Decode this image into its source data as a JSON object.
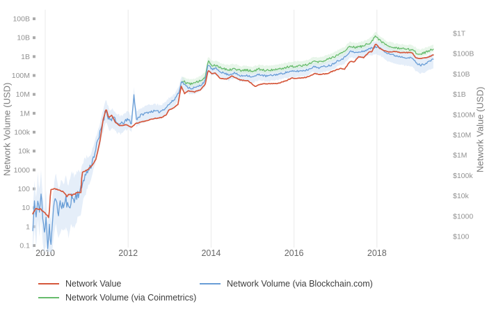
{
  "chart_data": {
    "type": "line",
    "title": "",
    "x_range": [
      2009.7,
      2019.5
    ],
    "grid": "vertical-only",
    "legend_position": "bottom",
    "x_ticks": [
      {
        "label": "2010",
        "year": 2010
      },
      {
        "label": "2012",
        "year": 2012
      },
      {
        "label": "2014",
        "year": 2014
      },
      {
        "label": "2016",
        "year": 2016
      },
      {
        "label": "2018",
        "year": 2018
      }
    ],
    "left_axis": {
      "label": "Network Volume (USD)",
      "scale": "log",
      "range": [
        0.1,
        100000000000
      ],
      "ticks": [
        {
          "label": "100B",
          "value": 100000000000.0
        },
        {
          "label": "10B",
          "value": 10000000000.0
        },
        {
          "label": "1B",
          "value": 1000000000.0
        },
        {
          "label": "100M",
          "value": 100000000.0
        },
        {
          "label": "10M",
          "value": 10000000.0
        },
        {
          "label": "1M",
          "value": 1000000.0
        },
        {
          "label": "100k",
          "value": 100000.0
        },
        {
          "label": "10k",
          "value": 10000.0
        },
        {
          "label": "1000",
          "value": 1000.0
        },
        {
          "label": "100",
          "value": 100.0
        },
        {
          "label": "10",
          "value": 10
        },
        {
          "label": "1",
          "value": 1
        },
        {
          "label": "0.1",
          "value": 0.1
        }
      ]
    },
    "right_axis": {
      "label": "Network Value (USD)",
      "scale": "log",
      "range": [
        100,
        1000000000000
      ],
      "ticks": [
        {
          "label": "$1T",
          "value": 1000000000000.0
        },
        {
          "label": "$100B",
          "value": 100000000000.0
        },
        {
          "label": "$10B",
          "value": 10000000000.0
        },
        {
          "label": "$1B",
          "value": 1000000000.0
        },
        {
          "label": "$100M",
          "value": 100000000.0
        },
        {
          "label": "$10M",
          "value": 10000000.0
        },
        {
          "label": "$1M",
          "value": 1000000.0
        },
        {
          "label": "$100k",
          "value": 100000.0
        },
        {
          "label": "$10k",
          "value": 10000.0
        },
        {
          "label": "$1000",
          "value": 1000.0
        },
        {
          "label": "$100",
          "value": 100.0
        }
      ]
    },
    "series": [
      {
        "name": "Network Value",
        "axis": "right",
        "color": "#d5573b",
        "points": [
          [
            2009.7,
            1300
          ],
          [
            2009.78,
            2400
          ],
          [
            2009.88,
            2200
          ],
          [
            2009.96,
            1700
          ],
          [
            2010.04,
            1100
          ],
          [
            2010.09,
            850
          ],
          [
            2010.13,
            20000
          ],
          [
            2010.22,
            23000
          ],
          [
            2010.35,
            20000
          ],
          [
            2010.45,
            15000
          ],
          [
            2010.52,
            9500
          ],
          [
            2010.58,
            12000
          ],
          [
            2010.65,
            10500
          ],
          [
            2010.75,
            14000
          ],
          [
            2010.86,
            15000
          ],
          [
            2010.89,
            150000
          ],
          [
            2010.97,
            170000
          ],
          [
            2011.03,
            200000
          ],
          [
            2011.12,
            300000
          ],
          [
            2011.22,
            600000
          ],
          [
            2011.32,
            5000000
          ],
          [
            2011.4,
            60000000
          ],
          [
            2011.47,
            190000000
          ],
          [
            2011.53,
            70000000
          ],
          [
            2011.6,
            95000000
          ],
          [
            2011.7,
            40000000
          ],
          [
            2011.8,
            28000000
          ],
          [
            2011.95,
            32000000
          ],
          [
            2012.08,
            24000000
          ],
          [
            2012.2,
            38000000
          ],
          [
            2012.4,
            48000000
          ],
          [
            2012.6,
            62000000
          ],
          [
            2012.8,
            72000000
          ],
          [
            2012.92,
            95000000
          ],
          [
            2012.97,
            160000000
          ],
          [
            2013.1,
            220000000
          ],
          [
            2013.2,
            320000000
          ],
          [
            2013.28,
            2500000000
          ],
          [
            2013.36,
            1100000000
          ],
          [
            2013.46,
            1500000000
          ],
          [
            2013.6,
            1300000000
          ],
          [
            2013.75,
            1700000000
          ],
          [
            2013.86,
            3200000000
          ],
          [
            2013.93,
            15500000000
          ],
          [
            2014.02,
            10000000000
          ],
          [
            2014.1,
            11000000000
          ],
          [
            2014.22,
            6200000000
          ],
          [
            2014.38,
            5600000000
          ],
          [
            2014.5,
            8000000000
          ],
          [
            2014.7,
            5100000000
          ],
          [
            2014.9,
            4600000000
          ],
          [
            2015.06,
            2400000000
          ],
          [
            2015.2,
            3200000000
          ],
          [
            2015.4,
            3300000000
          ],
          [
            2015.6,
            3400000000
          ],
          [
            2015.8,
            4600000000
          ],
          [
            2015.95,
            6300000000
          ],
          [
            2016.1,
            6200000000
          ],
          [
            2016.3,
            6900000000
          ],
          [
            2016.5,
            10500000000
          ],
          [
            2016.62,
            9300000000
          ],
          [
            2016.8,
            10500000000
          ],
          [
            2017.0,
            15500000000
          ],
          [
            2017.12,
            19000000000
          ],
          [
            2017.22,
            17500000000
          ],
          [
            2017.35,
            42000000000
          ],
          [
            2017.45,
            38000000000
          ],
          [
            2017.55,
            70000000000
          ],
          [
            2017.68,
            64000000000
          ],
          [
            2017.8,
            115000000000
          ],
          [
            2017.88,
            130000000000
          ],
          [
            2017.97,
            310000000000
          ],
          [
            2018.06,
            190000000000
          ],
          [
            2018.16,
            145000000000
          ],
          [
            2018.3,
            120000000000
          ],
          [
            2018.45,
            130000000000
          ],
          [
            2018.56,
            110000000000
          ],
          [
            2018.7,
            115000000000
          ],
          [
            2018.85,
            110000000000
          ],
          [
            2018.93,
            64000000000
          ],
          [
            2019.02,
            58000000000
          ],
          [
            2019.12,
            62000000000
          ],
          [
            2019.22,
            66000000000
          ],
          [
            2019.3,
            76000000000
          ],
          [
            2019.36,
            90000000000
          ]
        ]
      },
      {
        "name": "Network Volume (via Blockchain.com)",
        "axis": "left",
        "color": "#689dd6",
        "band_color": "#cfe0f4",
        "points": [
          [
            2009.7,
            0.6
          ],
          [
            2009.74,
            20
          ],
          [
            2009.78,
            2
          ],
          [
            2009.82,
            40
          ],
          [
            2009.86,
            5
          ],
          [
            2009.9,
            55
          ],
          [
            2009.94,
            3
          ],
          [
            2009.98,
            0.4
          ],
          [
            2010.02,
            5
          ],
          [
            2010.06,
            0.08
          ],
          [
            2010.1,
            1.2
          ],
          [
            2010.14,
            0.1
          ],
          [
            2010.18,
            2.5
          ],
          [
            2010.22,
            14
          ],
          [
            2010.26,
            32
          ],
          [
            2010.31,
            6
          ],
          [
            2010.38,
            16
          ],
          [
            2010.45,
            12
          ],
          [
            2010.5,
            26
          ],
          [
            2010.56,
            8
          ],
          [
            2010.63,
            36
          ],
          [
            2010.7,
            26
          ],
          [
            2010.78,
            60
          ],
          [
            2010.86,
            75
          ],
          [
            2010.92,
            320
          ],
          [
            2011.0,
            700
          ],
          [
            2011.1,
            1600
          ],
          [
            2011.2,
            9000
          ],
          [
            2011.3,
            55000
          ],
          [
            2011.38,
            320000
          ],
          [
            2011.47,
            1600000
          ],
          [
            2011.55,
            420000
          ],
          [
            2011.62,
            620000
          ],
          [
            2011.72,
            300000
          ],
          [
            2011.82,
            260000
          ],
          [
            2011.92,
            360000
          ],
          [
            2012.0,
            460000
          ],
          [
            2012.08,
            310000
          ],
          [
            2012.14,
            9000000
          ],
          [
            2012.2,
            520000
          ],
          [
            2012.32,
            820000
          ],
          [
            2012.46,
            1100000
          ],
          [
            2012.6,
            1300000
          ],
          [
            2012.76,
            1200000
          ],
          [
            2012.9,
            1900000
          ],
          [
            2013.0,
            3200000
          ],
          [
            2013.12,
            5500000
          ],
          [
            2013.22,
            13000000
          ],
          [
            2013.29,
            50000000
          ],
          [
            2013.4,
            26000000
          ],
          [
            2013.52,
            21000000
          ],
          [
            2013.64,
            23000000
          ],
          [
            2013.76,
            32000000
          ],
          [
            2013.86,
            55000000
          ],
          [
            2013.93,
            400000000
          ],
          [
            2014.02,
            210000000
          ],
          [
            2014.12,
            230000000
          ],
          [
            2014.26,
            145000000
          ],
          [
            2014.42,
            110000000
          ],
          [
            2014.56,
            135000000
          ],
          [
            2014.72,
            92000000
          ],
          [
            2014.86,
            105000000
          ],
          [
            2015.0,
            82000000
          ],
          [
            2015.16,
            115000000
          ],
          [
            2015.32,
            92000000
          ],
          [
            2015.5,
            105000000
          ],
          [
            2015.7,
            125000000
          ],
          [
            2015.86,
            155000000
          ],
          [
            2016.0,
            165000000
          ],
          [
            2016.16,
            175000000
          ],
          [
            2016.32,
            195000000
          ],
          [
            2016.46,
            290000000
          ],
          [
            2016.6,
            260000000
          ],
          [
            2016.76,
            310000000
          ],
          [
            2016.9,
            360000000
          ],
          [
            2017.06,
            620000000
          ],
          [
            2017.2,
            820000000
          ],
          [
            2017.35,
            1900000000
          ],
          [
            2017.5,
            1600000000
          ],
          [
            2017.66,
            1850000000
          ],
          [
            2017.82,
            2600000000
          ],
          [
            2017.97,
            3300000000
          ],
          [
            2018.1,
            2600000000
          ],
          [
            2018.26,
            1500000000
          ],
          [
            2018.42,
            1150000000
          ],
          [
            2018.56,
            1000000000
          ],
          [
            2018.72,
            900000000
          ],
          [
            2018.86,
            800000000
          ],
          [
            2018.96,
            430000000
          ],
          [
            2019.06,
            350000000
          ],
          [
            2019.16,
            420000000
          ],
          [
            2019.26,
            560000000
          ],
          [
            2019.36,
            700000000
          ]
        ]
      },
      {
        "name": "Network Volume (via Coinmetrics)",
        "axis": "left",
        "color": "#66bb6c",
        "band_color": "#d6eed8",
        "points": [
          [
            2013.3,
            52000000
          ],
          [
            2013.42,
            40000000
          ],
          [
            2013.52,
            36000000
          ],
          [
            2013.64,
            42000000
          ],
          [
            2013.76,
            55000000
          ],
          [
            2013.86,
            90000000
          ],
          [
            2013.93,
            620000000
          ],
          [
            2014.02,
            330000000
          ],
          [
            2014.12,
            360000000
          ],
          [
            2014.26,
            245000000
          ],
          [
            2014.42,
            200000000
          ],
          [
            2014.56,
            240000000
          ],
          [
            2014.72,
            175000000
          ],
          [
            2014.86,
            195000000
          ],
          [
            2015.0,
            165000000
          ],
          [
            2015.16,
            215000000
          ],
          [
            2015.32,
            185000000
          ],
          [
            2015.5,
            205000000
          ],
          [
            2015.7,
            235000000
          ],
          [
            2015.86,
            285000000
          ],
          [
            2016.0,
            310000000
          ],
          [
            2016.16,
            335000000
          ],
          [
            2016.32,
            385000000
          ],
          [
            2016.46,
            560000000
          ],
          [
            2016.6,
            510000000
          ],
          [
            2016.76,
            660000000
          ],
          [
            2016.9,
            820000000
          ],
          [
            2017.06,
            1300000000
          ],
          [
            2017.2,
            1700000000
          ],
          [
            2017.35,
            3600000000
          ],
          [
            2017.5,
            3000000000
          ],
          [
            2017.66,
            3600000000
          ],
          [
            2017.82,
            5200000000
          ],
          [
            2017.97,
            12000000000
          ],
          [
            2018.1,
            6500000000
          ],
          [
            2018.26,
            3600000000
          ],
          [
            2018.42,
            2900000000
          ],
          [
            2018.56,
            2600000000
          ],
          [
            2018.72,
            2400000000
          ],
          [
            2018.86,
            2300000000
          ],
          [
            2018.96,
            1550000000
          ],
          [
            2019.06,
            1350000000
          ],
          [
            2019.16,
            1650000000
          ],
          [
            2019.26,
            2050000000
          ],
          [
            2019.36,
            2600000000
          ]
        ]
      }
    ],
    "colors": {
      "grid": "#eaeaea",
      "tick_mark": "#ababab",
      "tick_text": "#919191",
      "x_tick_text": "#666666",
      "axis_title": "#7c7c7c",
      "legend_text": "#3d3d3d",
      "background": "#ffffff"
    }
  }
}
